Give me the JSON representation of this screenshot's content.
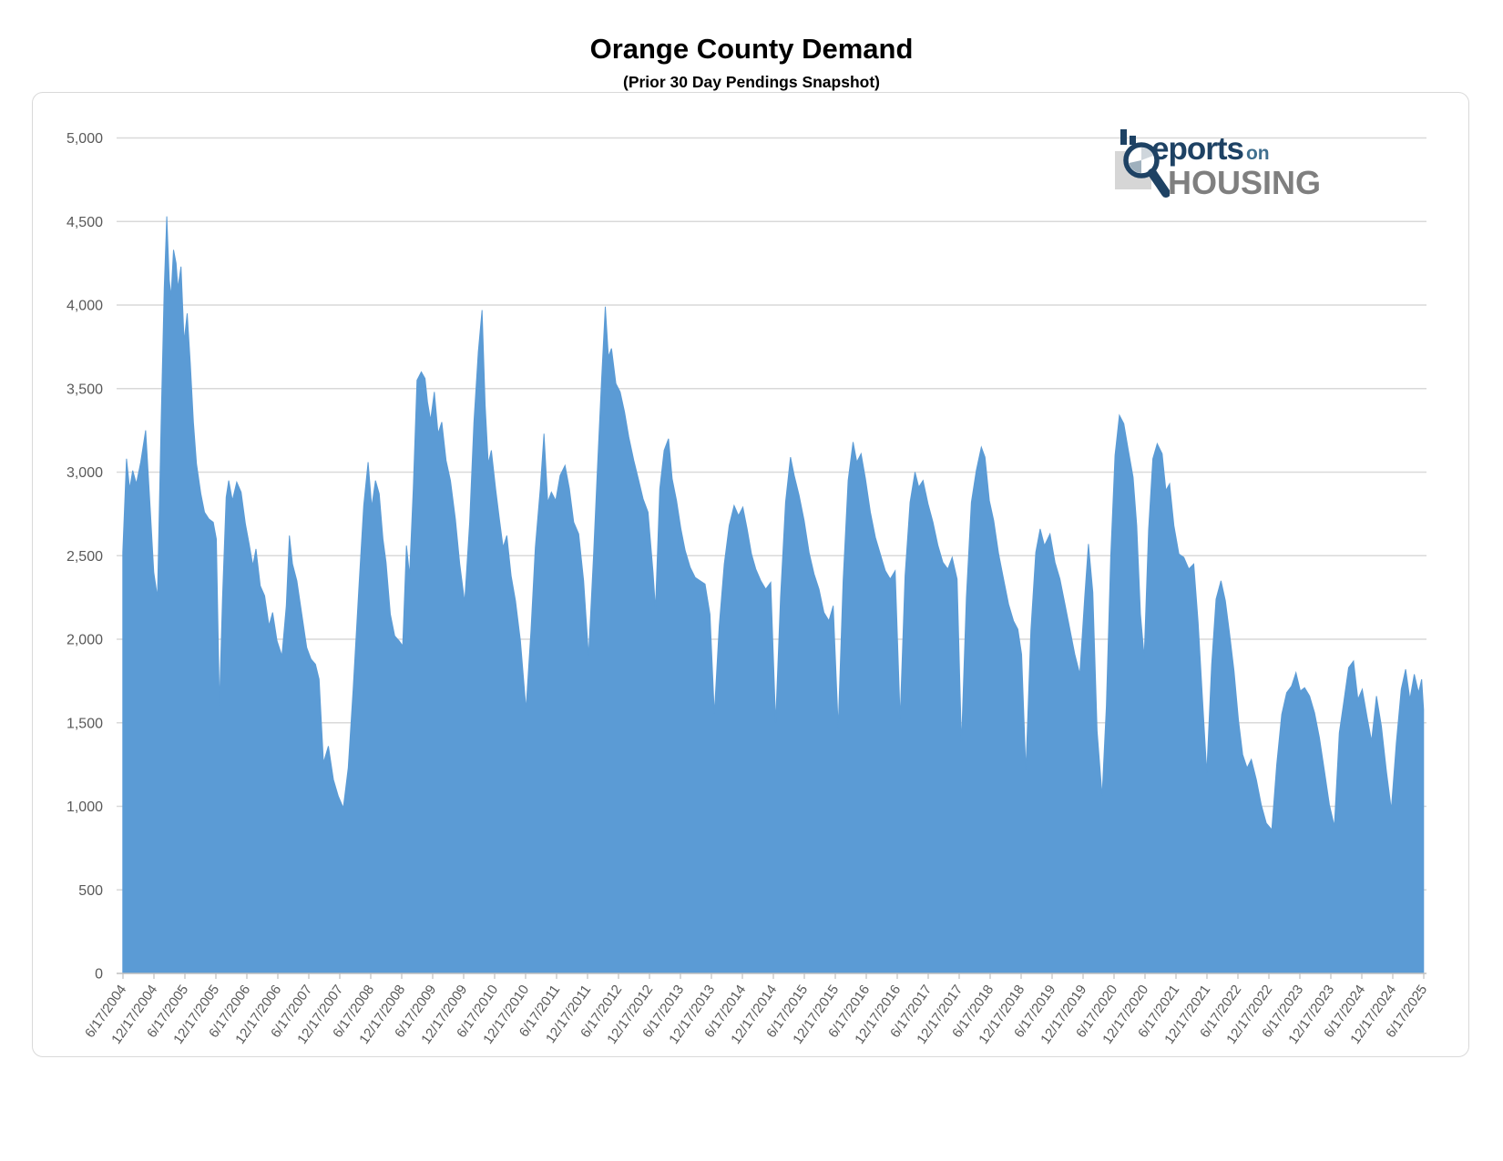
{
  "chart": {
    "title": "Orange County Demand",
    "subtitle": "(Prior 30 Day Pendings Snapshot)"
  },
  "logo": {
    "line1_main": "eports",
    "line1_suffix": "on",
    "line2": "HOUSING"
  },
  "chart_data": {
    "type": "area",
    "title": "Orange County Demand",
    "subtitle": "(Prior 30 Day Pendings Snapshot)",
    "series_name": "Prior 30 Day Pendings Snapshot",
    "xlabel": "",
    "ylabel": "",
    "ylim": [
      0,
      5000
    ],
    "grid": "horizontal",
    "legend": "none",
    "fill_color": "#5B9BD5",
    "gridline_color": "#d9d9d9",
    "axis_color": "#bfbfbf",
    "tick_label_color": "#595959",
    "x_start_year": 2004.4631,
    "x_tick_interval_years": 0.5,
    "x_tick_labels": [
      "6/17/2004",
      "12/17/2004",
      "6/17/2005",
      "12/17/2005",
      "6/17/2006",
      "12/17/2006",
      "6/17/2007",
      "12/17/2007",
      "6/17/2008",
      "12/17/2008",
      "6/17/2009",
      "12/17/2009",
      "6/17/2010",
      "12/17/2010",
      "6/17/2011",
      "12/17/2011",
      "6/17/2012",
      "12/17/2012",
      "6/17/2013",
      "12/17/2013",
      "6/17/2014",
      "12/17/2014",
      "6/17/2015",
      "12/17/2015",
      "6/17/2016",
      "12/17/2016",
      "6/17/2017",
      "12/17/2017",
      "6/17/2018",
      "12/17/2018",
      "6/17/2019",
      "12/17/2019",
      "6/17/2020",
      "12/17/2020",
      "6/17/2021",
      "12/17/2021",
      "6/17/2022",
      "12/17/2022",
      "6/17/2023",
      "12/17/2023",
      "6/17/2024",
      "12/17/2024",
      "6/17/2025"
    ],
    "y_tick_values": [
      0,
      500,
      1000,
      1500,
      2000,
      2500,
      3000,
      3500,
      4000,
      4500,
      5000
    ],
    "y_tick_labels": [
      "0",
      "500",
      "1,000",
      "1,500",
      "2,000",
      "2,500",
      "3,000",
      "3,500",
      "4,000",
      "4,500",
      "5,000"
    ],
    "points": [
      [
        2004.46,
        2520
      ],
      [
        2004.52,
        3080
      ],
      [
        2004.57,
        2900
      ],
      [
        2004.62,
        3010
      ],
      [
        2004.68,
        2930
      ],
      [
        2004.75,
        3060
      ],
      [
        2004.83,
        3250
      ],
      [
        2004.9,
        2800
      ],
      [
        2004.96,
        2400
      ],
      [
        2005.02,
        2250
      ],
      [
        2005.08,
        3300
      ],
      [
        2005.13,
        4100
      ],
      [
        2005.17,
        4530
      ],
      [
        2005.21,
        4150
      ],
      [
        2005.24,
        4050
      ],
      [
        2005.28,
        4330
      ],
      [
        2005.32,
        4250
      ],
      [
        2005.35,
        4100
      ],
      [
        2005.4,
        4230
      ],
      [
        2005.45,
        3780
      ],
      [
        2005.5,
        3950
      ],
      [
        2005.55,
        3650
      ],
      [
        2005.6,
        3300
      ],
      [
        2005.65,
        3050
      ],
      [
        2005.72,
        2870
      ],
      [
        2005.78,
        2760
      ],
      [
        2005.85,
        2720
      ],
      [
        2005.92,
        2700
      ],
      [
        2005.97,
        2600
      ],
      [
        2006.02,
        1600
      ],
      [
        2006.07,
        2250
      ],
      [
        2006.13,
        2850
      ],
      [
        2006.17,
        2950
      ],
      [
        2006.23,
        2830
      ],
      [
        2006.3,
        2940
      ],
      [
        2006.37,
        2880
      ],
      [
        2006.44,
        2690
      ],
      [
        2006.5,
        2570
      ],
      [
        2006.56,
        2440
      ],
      [
        2006.61,
        2540
      ],
      [
        2006.68,
        2320
      ],
      [
        2006.75,
        2260
      ],
      [
        2006.82,
        2080
      ],
      [
        2006.88,
        2160
      ],
      [
        2006.95,
        1990
      ],
      [
        2007.03,
        1900
      ],
      [
        2007.1,
        2200
      ],
      [
        2007.15,
        2620
      ],
      [
        2007.2,
        2450
      ],
      [
        2007.27,
        2350
      ],
      [
        2007.35,
        2150
      ],
      [
        2007.43,
        1950
      ],
      [
        2007.5,
        1880
      ],
      [
        2007.57,
        1850
      ],
      [
        2007.63,
        1760
      ],
      [
        2007.7,
        1260
      ],
      [
        2007.78,
        1360
      ],
      [
        2007.86,
        1160
      ],
      [
        2007.94,
        1060
      ],
      [
        2008.02,
        990
      ],
      [
        2008.1,
        1230
      ],
      [
        2008.18,
        1700
      ],
      [
        2008.27,
        2300
      ],
      [
        2008.35,
        2800
      ],
      [
        2008.42,
        3060
      ],
      [
        2008.48,
        2790
      ],
      [
        2008.54,
        2950
      ],
      [
        2008.6,
        2870
      ],
      [
        2008.66,
        2600
      ],
      [
        2008.71,
        2460
      ],
      [
        2008.78,
        2150
      ],
      [
        2008.85,
        2020
      ],
      [
        2008.92,
        1990
      ],
      [
        2008.98,
        1960
      ],
      [
        2009.04,
        2560
      ],
      [
        2009.09,
        2380
      ],
      [
        2009.15,
        2900
      ],
      [
        2009.21,
        3550
      ],
      [
        2009.28,
        3600
      ],
      [
        2009.34,
        3560
      ],
      [
        2009.38,
        3420
      ],
      [
        2009.43,
        3310
      ],
      [
        2009.49,
        3480
      ],
      [
        2009.55,
        3230
      ],
      [
        2009.61,
        3300
      ],
      [
        2009.68,
        3070
      ],
      [
        2009.75,
        2950
      ],
      [
        2009.83,
        2720
      ],
      [
        2009.9,
        2450
      ],
      [
        2009.98,
        2220
      ],
      [
        2010.06,
        2700
      ],
      [
        2010.13,
        3300
      ],
      [
        2010.2,
        3720
      ],
      [
        2010.26,
        3970
      ],
      [
        2010.31,
        3400
      ],
      [
        2010.36,
        3050
      ],
      [
        2010.41,
        3130
      ],
      [
        2010.48,
        2900
      ],
      [
        2010.54,
        2720
      ],
      [
        2010.6,
        2550
      ],
      [
        2010.66,
        2620
      ],
      [
        2010.73,
        2380
      ],
      [
        2010.8,
        2230
      ],
      [
        2010.88,
        1990
      ],
      [
        2010.97,
        1580
      ],
      [
        2011.05,
        2050
      ],
      [
        2011.12,
        2550
      ],
      [
        2011.2,
        2900
      ],
      [
        2011.26,
        3230
      ],
      [
        2011.32,
        2820
      ],
      [
        2011.38,
        2880
      ],
      [
        2011.45,
        2830
      ],
      [
        2011.52,
        2980
      ],
      [
        2011.6,
        3040
      ],
      [
        2011.67,
        2900
      ],
      [
        2011.74,
        2700
      ],
      [
        2011.82,
        2630
      ],
      [
        2011.9,
        2350
      ],
      [
        2011.98,
        1900
      ],
      [
        2012.06,
        2500
      ],
      [
        2012.12,
        3000
      ],
      [
        2012.19,
        3550
      ],
      [
        2012.25,
        3990
      ],
      [
        2012.3,
        3690
      ],
      [
        2012.35,
        3740
      ],
      [
        2012.42,
        3530
      ],
      [
        2012.49,
        3480
      ],
      [
        2012.56,
        3360
      ],
      [
        2012.63,
        3210
      ],
      [
        2012.71,
        3070
      ],
      [
        2012.79,
        2950
      ],
      [
        2012.86,
        2840
      ],
      [
        2012.94,
        2760
      ],
      [
        2013.02,
        2400
      ],
      [
        2013.06,
        2180
      ],
      [
        2013.13,
        2900
      ],
      [
        2013.2,
        3130
      ],
      [
        2013.27,
        3200
      ],
      [
        2013.33,
        2960
      ],
      [
        2013.4,
        2830
      ],
      [
        2013.47,
        2660
      ],
      [
        2013.54,
        2530
      ],
      [
        2013.62,
        2430
      ],
      [
        2013.7,
        2370
      ],
      [
        2013.78,
        2350
      ],
      [
        2013.86,
        2330
      ],
      [
        2013.94,
        2150
      ],
      [
        2014.01,
        1550
      ],
      [
        2014.09,
        2080
      ],
      [
        2014.17,
        2450
      ],
      [
        2014.25,
        2680
      ],
      [
        2014.33,
        2800
      ],
      [
        2014.4,
        2740
      ],
      [
        2014.47,
        2790
      ],
      [
        2014.54,
        2660
      ],
      [
        2014.61,
        2510
      ],
      [
        2014.68,
        2420
      ],
      [
        2014.76,
        2350
      ],
      [
        2014.84,
        2300
      ],
      [
        2014.92,
        2340
      ],
      [
        2015.0,
        1500
      ],
      [
        2015.08,
        2250
      ],
      [
        2015.16,
        2820
      ],
      [
        2015.24,
        3090
      ],
      [
        2015.3,
        2980
      ],
      [
        2015.38,
        2860
      ],
      [
        2015.46,
        2710
      ],
      [
        2015.54,
        2520
      ],
      [
        2015.62,
        2390
      ],
      [
        2015.7,
        2300
      ],
      [
        2015.78,
        2160
      ],
      [
        2015.86,
        2110
      ],
      [
        2015.93,
        2200
      ],
      [
        2016.01,
        1470
      ],
      [
        2016.09,
        2350
      ],
      [
        2016.17,
        2950
      ],
      [
        2016.25,
        3180
      ],
      [
        2016.31,
        3060
      ],
      [
        2016.38,
        3110
      ],
      [
        2016.45,
        2960
      ],
      [
        2016.53,
        2760
      ],
      [
        2016.61,
        2610
      ],
      [
        2016.69,
        2510
      ],
      [
        2016.77,
        2410
      ],
      [
        2016.85,
        2360
      ],
      [
        2016.93,
        2410
      ],
      [
        2017.01,
        1520
      ],
      [
        2017.09,
        2380
      ],
      [
        2017.17,
        2820
      ],
      [
        2017.25,
        3000
      ],
      [
        2017.31,
        2910
      ],
      [
        2017.38,
        2950
      ],
      [
        2017.46,
        2810
      ],
      [
        2017.54,
        2700
      ],
      [
        2017.62,
        2560
      ],
      [
        2017.7,
        2460
      ],
      [
        2017.78,
        2420
      ],
      [
        2017.85,
        2490
      ],
      [
        2017.93,
        2360
      ],
      [
        2018.0,
        1370
      ],
      [
        2018.08,
        2250
      ],
      [
        2018.16,
        2820
      ],
      [
        2018.24,
        3010
      ],
      [
        2018.32,
        3150
      ],
      [
        2018.38,
        3090
      ],
      [
        2018.45,
        2830
      ],
      [
        2018.52,
        2710
      ],
      [
        2018.6,
        2510
      ],
      [
        2018.68,
        2360
      ],
      [
        2018.76,
        2210
      ],
      [
        2018.84,
        2110
      ],
      [
        2018.91,
        2060
      ],
      [
        2018.97,
        1910
      ],
      [
        2019.04,
        1210
      ],
      [
        2019.12,
        2050
      ],
      [
        2019.2,
        2520
      ],
      [
        2019.27,
        2660
      ],
      [
        2019.34,
        2560
      ],
      [
        2019.43,
        2630
      ],
      [
        2019.51,
        2460
      ],
      [
        2019.59,
        2360
      ],
      [
        2019.67,
        2210
      ],
      [
        2019.75,
        2060
      ],
      [
        2019.83,
        1910
      ],
      [
        2019.91,
        1790
      ],
      [
        2019.99,
        2250
      ],
      [
        2020.05,
        2570
      ],
      [
        2020.12,
        2280
      ],
      [
        2020.19,
        1450
      ],
      [
        2020.27,
        1060
      ],
      [
        2020.34,
        1600
      ],
      [
        2020.41,
        2500
      ],
      [
        2020.48,
        3100
      ],
      [
        2020.55,
        3340
      ],
      [
        2020.62,
        3290
      ],
      [
        2020.69,
        3140
      ],
      [
        2020.77,
        2970
      ],
      [
        2020.83,
        2680
      ],
      [
        2020.89,
        2150
      ],
      [
        2020.95,
        1890
      ],
      [
        2021.02,
        2650
      ],
      [
        2021.09,
        3080
      ],
      [
        2021.16,
        3170
      ],
      [
        2021.24,
        3110
      ],
      [
        2021.3,
        2890
      ],
      [
        2021.36,
        2930
      ],
      [
        2021.43,
        2680
      ],
      [
        2021.51,
        2510
      ],
      [
        2021.59,
        2490
      ],
      [
        2021.67,
        2420
      ],
      [
        2021.75,
        2450
      ],
      [
        2021.82,
        2100
      ],
      [
        2021.89,
        1650
      ],
      [
        2021.96,
        1200
      ],
      [
        2022.04,
        1850
      ],
      [
        2022.11,
        2240
      ],
      [
        2022.19,
        2350
      ],
      [
        2022.26,
        2230
      ],
      [
        2022.33,
        2030
      ],
      [
        2022.4,
        1810
      ],
      [
        2022.47,
        1520
      ],
      [
        2022.54,
        1310
      ],
      [
        2022.61,
        1230
      ],
      [
        2022.68,
        1280
      ],
      [
        2022.76,
        1160
      ],
      [
        2022.84,
        1010
      ],
      [
        2022.92,
        900
      ],
      [
        2023.01,
        860
      ],
      [
        2023.09,
        1250
      ],
      [
        2023.17,
        1550
      ],
      [
        2023.25,
        1680
      ],
      [
        2023.33,
        1720
      ],
      [
        2023.4,
        1800
      ],
      [
        2023.47,
        1690
      ],
      [
        2023.54,
        1710
      ],
      [
        2023.62,
        1660
      ],
      [
        2023.7,
        1560
      ],
      [
        2023.78,
        1410
      ],
      [
        2023.86,
        1210
      ],
      [
        2023.94,
        1010
      ],
      [
        2024.02,
        880
      ],
      [
        2024.1,
        1440
      ],
      [
        2024.17,
        1620
      ],
      [
        2024.25,
        1830
      ],
      [
        2024.33,
        1870
      ],
      [
        2024.4,
        1640
      ],
      [
        2024.47,
        1700
      ],
      [
        2024.55,
        1530
      ],
      [
        2024.62,
        1390
      ],
      [
        2024.7,
        1660
      ],
      [
        2024.78,
        1480
      ],
      [
        2024.86,
        1210
      ],
      [
        2024.94,
        980
      ],
      [
        2025.02,
        1380
      ],
      [
        2025.1,
        1700
      ],
      [
        2025.17,
        1820
      ],
      [
        2025.24,
        1640
      ],
      [
        2025.31,
        1790
      ],
      [
        2025.38,
        1680
      ],
      [
        2025.43,
        1760
      ],
      [
        2025.46,
        1580
      ]
    ]
  }
}
